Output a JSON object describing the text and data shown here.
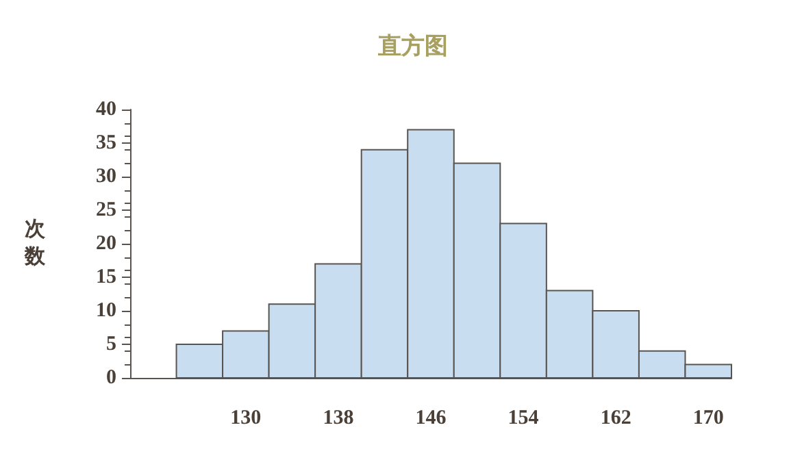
{
  "chart_data": {
    "type": "histogram",
    "title": "直方图",
    "ylabel": "次数",
    "bins": [
      124,
      128,
      132,
      136,
      140,
      144,
      148,
      152,
      156,
      160,
      164,
      168,
      172
    ],
    "values": [
      5,
      7,
      11,
      17,
      34,
      37,
      32,
      23,
      13,
      10,
      4,
      2
    ],
    "color": "#c9ddf0",
    "xlim": [
      120,
      172
    ],
    "xticks": [
      130,
      138,
      146,
      154,
      162,
      170
    ],
    "ylim": [
      0,
      40
    ],
    "yticks": [
      0,
      5,
      10,
      15,
      20,
      25,
      30,
      35,
      40
    ],
    "grid": false
  }
}
